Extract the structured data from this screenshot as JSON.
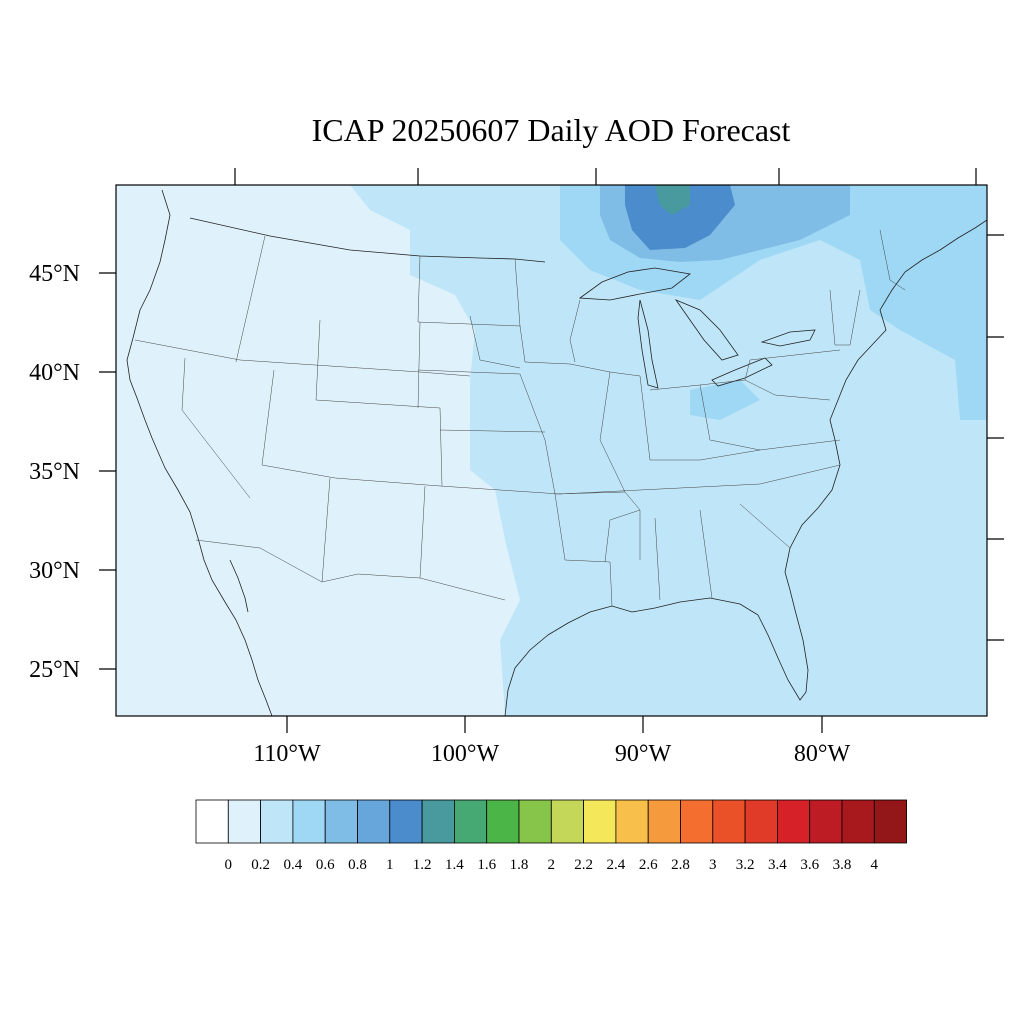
{
  "title": "ICAP 20250607 Daily AOD Forecast",
  "lat_labels": [
    "45°N",
    "40°N",
    "35°N",
    "30°N",
    "25°N"
  ],
  "lon_labels": [
    "110°W",
    "100°W",
    "90°W",
    "80°W"
  ],
  "colorbar": {
    "labels": [
      "0",
      "0.2",
      "0.4",
      "0.6",
      "0.8",
      "1",
      "1.2",
      "1.4",
      "1.6",
      "1.8",
      "2",
      "2.2",
      "2.4",
      "2.6",
      "2.8",
      "3",
      "3.2",
      "3.4",
      "3.6",
      "3.8",
      "4"
    ],
    "colors": [
      "#ffffff",
      "#dff2fc",
      "#bfe6f8",
      "#9fd8f4",
      "#80bde6",
      "#66a6da",
      "#4a8ccc",
      "#489a9e",
      "#46a873",
      "#4bb548",
      "#86c54a",
      "#c4d758",
      "#f4e75a",
      "#f8bf4a",
      "#f69a3e",
      "#f46e2f",
      "#ea5129",
      "#e03a28",
      "#d62128",
      "#bd1c24",
      "#a8191e",
      "#931619"
    ]
  },
  "map": {
    "colors": {
      "background": "#dff2fc",
      "low_plume": "#bfe6f8",
      "mid_plume": "#9fd8f4",
      "high_plume": "#80bde6",
      "smoke_core": "#4a8ccc",
      "smoke_peak": "#489a9e"
    }
  }
}
